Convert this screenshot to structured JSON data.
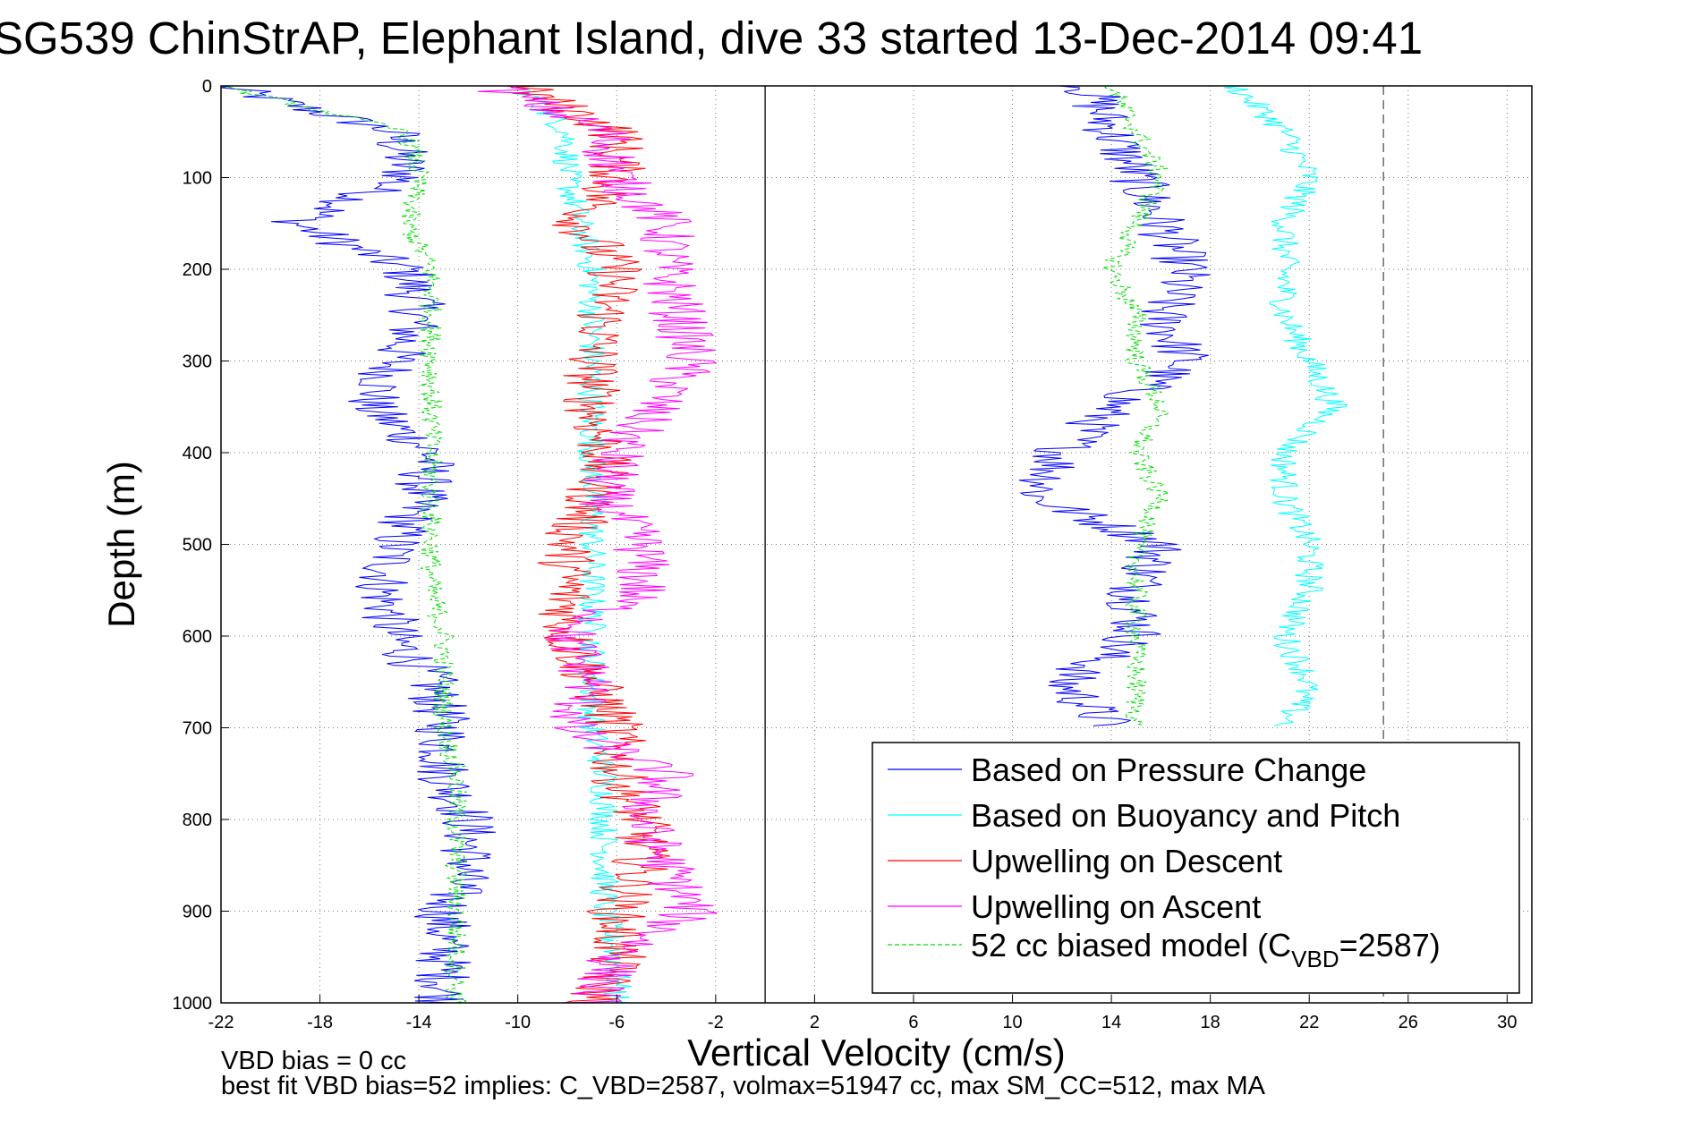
{
  "chart_data": {
    "type": "line",
    "title": "SG539 ChinStrAP, Elephant Island, dive 33 started 13-Dec-2014 09:41",
    "xlabel": "Vertical Velocity (cm/s)",
    "ylabel": "Depth (m)",
    "xlim": [
      -22,
      31
    ],
    "ylim": [
      1000,
      0
    ],
    "y_reversed": true,
    "xticks": [
      -22,
      -18,
      -14,
      -10,
      -6,
      -2,
      2,
      6,
      10,
      14,
      18,
      22,
      26,
      30
    ],
    "yticks": [
      0,
      100,
      200,
      300,
      400,
      500,
      600,
      700,
      800,
      900,
      1000
    ],
    "grid": true,
    "legend_position": "bottom-right",
    "depth": [
      0,
      50,
      100,
      150,
      200,
      250,
      300,
      350,
      400,
      450,
      500,
      550,
      600,
      650,
      700,
      750,
      800,
      850,
      900,
      950,
      1000
    ],
    "series": [
      {
        "name": "Based on Pressure Change",
        "color": "#0000ff",
        "style": "solid",
        "descent": [
          -22,
          -15,
          -14.5,
          -19,
          -14.5,
          -14,
          -15,
          -16,
          -13.5,
          -14,
          -15,
          -15.5,
          -15,
          -13.5,
          -13,
          -13,
          -12,
          -12,
          -13,
          -13,
          -13
        ],
        "ascent": [
          13,
          14,
          15,
          16,
          17,
          16,
          17,
          14,
          12,
          11,
          16,
          15,
          15,
          12,
          14,
          null,
          null,
          null,
          null,
          null,
          null
        ]
      },
      {
        "name": "Based on Buoyancy and Pitch",
        "color": "#00ffff",
        "style": "solid",
        "descent": [
          -10,
          -8,
          -8,
          -7.5,
          -7,
          -7,
          -7,
          -7,
          -7,
          -7,
          -7,
          -7,
          -7,
          -7,
          -7,
          -6.5,
          -6.5,
          -6.5,
          -6.5,
          -6,
          -6
        ],
        "ascent": [
          19,
          21,
          22,
          21,
          21,
          21,
          22,
          23,
          21,
          21,
          22,
          22,
          21,
          22,
          21,
          null,
          null,
          null,
          null,
          null,
          null
        ]
      },
      {
        "name": "Upwelling on Descent",
        "color": "#ff0000",
        "style": "solid",
        "descent": [
          -10,
          -6,
          -6,
          -7.5,
          -6,
          -6.5,
          -7,
          -7,
          -6.5,
          -7,
          -8,
          -8,
          -8,
          -7,
          -6,
          -6,
          -5,
          -5,
          -6,
          -6,
          -7
        ],
        "ascent": null
      },
      {
        "name": "Upwelling on Ascent",
        "color": "#ff00ff",
        "style": "solid",
        "descent": [
          -11,
          -6.5,
          -6,
          -4,
          -4,
          -3.5,
          -3,
          -4.5,
          -6,
          -6.5,
          -5,
          -5,
          -8,
          -7,
          -8,
          -4,
          -5,
          -4,
          -3,
          -6,
          -7
        ],
        "ascent": null
      },
      {
        "name": "52 cc biased model (CVBD=2587)",
        "color": "#00dd00",
        "style": "dashed",
        "descent": [
          -22,
          -14.5,
          -14,
          -14.5,
          -13.5,
          -13.5,
          -13.5,
          -13.5,
          -13.5,
          -13.5,
          -13.5,
          -13.5,
          -13,
          -13,
          -13,
          -12.5,
          -12.5,
          -12.5,
          -12.5,
          -12.5,
          -12.5
        ],
        "ascent": [
          14,
          15,
          16,
          15,
          14,
          15,
          15,
          16,
          15,
          16,
          15,
          15,
          15,
          15,
          15,
          null,
          null,
          null,
          null,
          null,
          null
        ]
      }
    ],
    "reference_lines": [
      {
        "x": 0,
        "color": "#000000",
        "style": "solid"
      },
      {
        "x": 25,
        "color": "#555555",
        "style": "dashed"
      }
    ],
    "legend": {
      "entries": [
        "Based on Pressure Change",
        "Based on Buoyancy and Pitch",
        "Upwelling on Descent",
        "Upwelling on Ascent"
      ],
      "last_prefix": "52 cc biased model (C",
      "last_sub": "VBD",
      "last_suffix": "=2587)"
    }
  },
  "annotations": {
    "bias_line": "VBD bias = 0 cc",
    "fit_line": "best fit VBD bias=52 implies: C_VBD=2587, volmax=51947 cc, max SM_CC=512, max MA"
  }
}
